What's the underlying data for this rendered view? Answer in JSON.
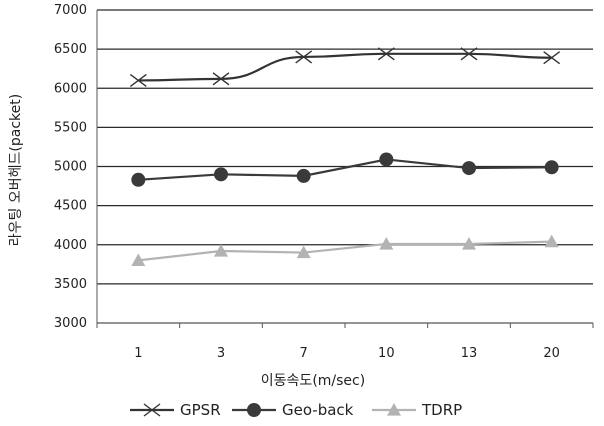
{
  "chart_data": {
    "type": "line",
    "categories": [
      "1",
      "3",
      "7",
      "10",
      "13",
      "20"
    ],
    "ylabel": "라우팅 오버헤드(packet)",
    "xlabel": "이동속도(m/sec)",
    "ylim": [
      3000,
      7000
    ],
    "yticks": [
      "3000",
      "3500",
      "4000",
      "4500",
      "5000",
      "5500",
      "6000",
      "6500",
      "7000"
    ],
    "grid": "horizontal",
    "legend_position": "bottom",
    "series": [
      {
        "name": "GPSR",
        "marker": "x",
        "color": "#333333",
        "values": [
          6100,
          6120,
          6400,
          6440,
          6440,
          6390
        ]
      },
      {
        "name": "Geo-back",
        "marker": "circle",
        "color": "#3a3a3a",
        "values": [
          4830,
          4900,
          4880,
          5090,
          4980,
          4990
        ]
      },
      {
        "name": "TDRP",
        "marker": "triangle",
        "color": "#b3b3b3",
        "values": [
          3800,
          3920,
          3900,
          4010,
          4010,
          4040
        ]
      }
    ]
  }
}
